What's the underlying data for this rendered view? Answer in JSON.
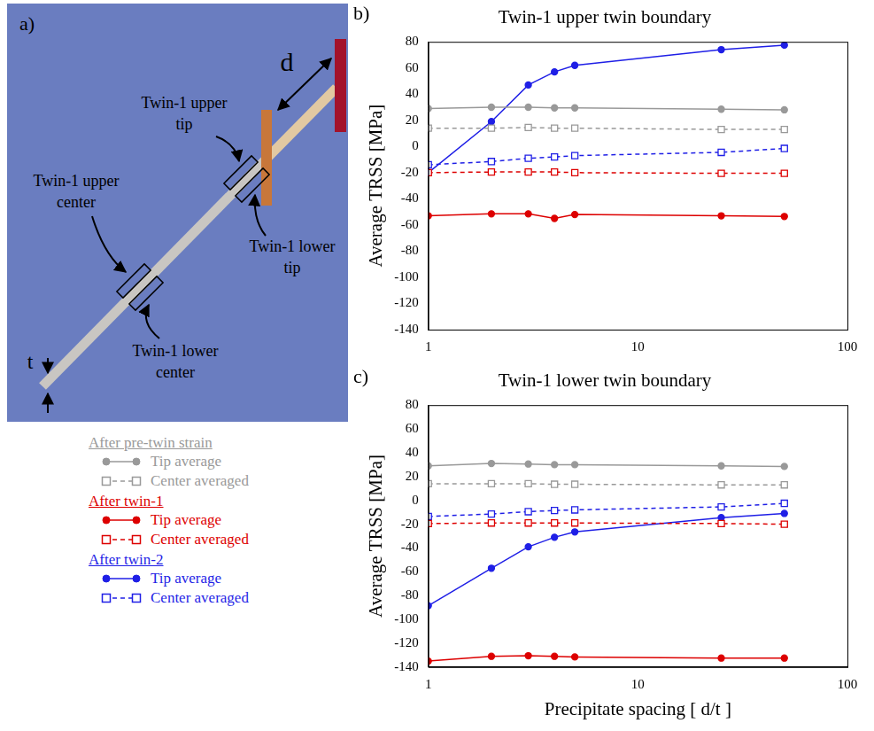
{
  "diagram": {
    "panel_label": "a)",
    "labels": {
      "upper_tip": "Twin-1 upper tip",
      "lower_tip": "Twin-1 lower tip",
      "upper_center": "Twin-1 upper center",
      "lower_center": "Twin-1 lower center",
      "spacing": "d",
      "thickness": "t"
    }
  },
  "chart_data": [
    {
      "type": "line",
      "panel_label": "b)",
      "title": "Twin-1 upper twin boundary",
      "y_label": "Average TRSS [MPa]",
      "log": "x",
      "grid": false,
      "xlim": [
        1,
        100
      ],
      "xticks": [
        1,
        10,
        100
      ],
      "ylim": [
        -140,
        80
      ],
      "yticks": [
        -140,
        -120,
        -100,
        -80,
        -60,
        -40,
        -20,
        0,
        20,
        40,
        60,
        80
      ],
      "x": [
        1,
        2,
        3,
        4,
        5,
        25,
        50
      ],
      "series": [
        {
          "group": "After pre-twin strain",
          "name": "Tip average",
          "color": "#999999",
          "marker": "circle",
          "line_style": "solid",
          "values": [
            29,
            30,
            30,
            29.5,
            29.5,
            28.5,
            28
          ]
        },
        {
          "group": "After pre-twin strain",
          "name": "Center averaged",
          "color": "#999999",
          "marker": "open_square",
          "line_style": "dashed",
          "values": [
            14,
            14,
            14.5,
            14,
            14,
            13,
            13
          ]
        },
        {
          "group": "After twin-1",
          "name": "Tip average",
          "color": "#dd0000",
          "marker": "circle",
          "line_style": "solid",
          "values": [
            -53,
            -51.5,
            -51.5,
            -55,
            -52,
            -53,
            -53.5
          ]
        },
        {
          "group": "After twin-1",
          "name": "Center averaged",
          "color": "#dd0000",
          "marker": "open_square",
          "line_style": "dashed",
          "values": [
            -20,
            -19.5,
            -19.5,
            -19.5,
            -20,
            -20.5,
            -20.5
          ]
        },
        {
          "group": "After twin-2",
          "name": "Tip average",
          "color": "#1f1fe6",
          "marker": "circle",
          "line_style": "solid",
          "values": [
            -20,
            19,
            47,
            57,
            62,
            74,
            77.5
          ]
        },
        {
          "group": "After twin-2",
          "name": "Center averaged",
          "color": "#1f1fe6",
          "marker": "open_square",
          "line_style": "dashed",
          "values": [
            -14,
            -11.5,
            -9,
            -8,
            -7,
            -4.5,
            -1.5
          ]
        }
      ]
    },
    {
      "type": "line",
      "panel_label": "c)",
      "title": "Twin-1 lower twin boundary",
      "x_label": "Precipitate spacing [ d/t ]",
      "y_label": "Average TRSS [MPa]",
      "log": "x",
      "grid": false,
      "xlim": [
        1,
        100
      ],
      "xticks": [
        1,
        10,
        100
      ],
      "ylim": [
        -140,
        80
      ],
      "yticks": [
        -140,
        -120,
        -100,
        -80,
        -60,
        -40,
        -20,
        0,
        20,
        40,
        60,
        80
      ],
      "x": [
        1,
        2,
        3,
        4,
        5,
        25,
        50
      ],
      "series": [
        {
          "group": "After pre-twin strain",
          "name": "Tip average",
          "color": "#999999",
          "marker": "circle",
          "line_style": "solid",
          "values": [
            29,
            31,
            30.5,
            30,
            30,
            29,
            28.5
          ]
        },
        {
          "group": "After pre-twin strain",
          "name": "Center averaged",
          "color": "#999999",
          "marker": "open_square",
          "line_style": "dashed",
          "values": [
            14,
            14,
            14,
            13.5,
            13.5,
            13,
            13
          ]
        },
        {
          "group": "After twin-1",
          "name": "Tip average",
          "color": "#dd0000",
          "marker": "circle",
          "line_style": "solid",
          "values": [
            -135,
            -131,
            -130.5,
            -131,
            -131.5,
            -132.5,
            -132.5
          ]
        },
        {
          "group": "After twin-1",
          "name": "Center averaged",
          "color": "#dd0000",
          "marker": "open_square",
          "line_style": "dashed",
          "values": [
            -19.5,
            -19,
            -19,
            -19,
            -19,
            -19.5,
            -20
          ]
        },
        {
          "group": "After twin-2",
          "name": "Tip average",
          "color": "#1f1fe6",
          "marker": "circle",
          "line_style": "solid",
          "values": [
            -88.5,
            -57,
            -39,
            -31,
            -26.5,
            -14.5,
            -11
          ]
        },
        {
          "group": "After twin-2",
          "name": "Center averaged",
          "color": "#1f1fe6",
          "marker": "open_square",
          "line_style": "dashed",
          "values": [
            -13.5,
            -11.5,
            -9.5,
            -8.5,
            -8,
            -5.5,
            -2.5
          ]
        }
      ]
    }
  ]
}
